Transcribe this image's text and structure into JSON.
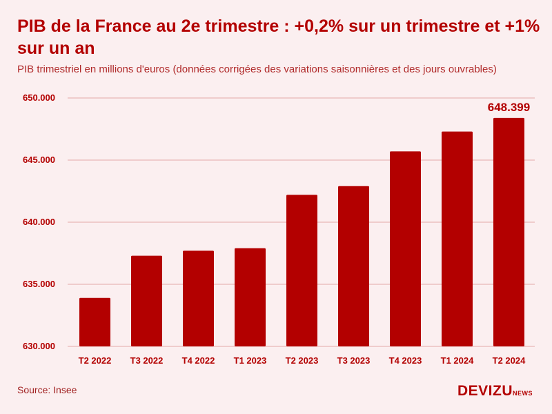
{
  "title": "PIB de la France au 2e trimestre : +0,2% sur un trimestre et +1% sur un an",
  "subtitle": "PIB trimestriel en millions d'euros (données corrigées des variations saisonnières et des jours ouvrables)",
  "source": "Source: Insee",
  "logo": {
    "main": "DEVIZU",
    "sub": "NEWS"
  },
  "colors": {
    "bar": "#b30000",
    "background": "#fbeff0",
    "grid": "#e3a9a9",
    "text": "#b30000"
  },
  "chart_data": {
    "type": "bar",
    "categories": [
      "T2 2022",
      "T3 2022",
      "T4 2022",
      "T1 2023",
      "T2 2023",
      "T3 2023",
      "T4 2023",
      "T1 2024",
      "T2 2024"
    ],
    "values": [
      633900,
      637300,
      637700,
      637900,
      642200,
      642900,
      645700,
      647300,
      648399
    ],
    "ylim": [
      630000,
      650000
    ],
    "yticks": [
      650000,
      645000,
      640000,
      635000,
      630000
    ],
    "ytick_labels": [
      "650.000",
      "645.000",
      "640.000",
      "635.000",
      "630.000"
    ],
    "data_labels": [
      {
        "index": 8,
        "text": "648.399"
      }
    ],
    "grid": true,
    "legend": "none"
  }
}
